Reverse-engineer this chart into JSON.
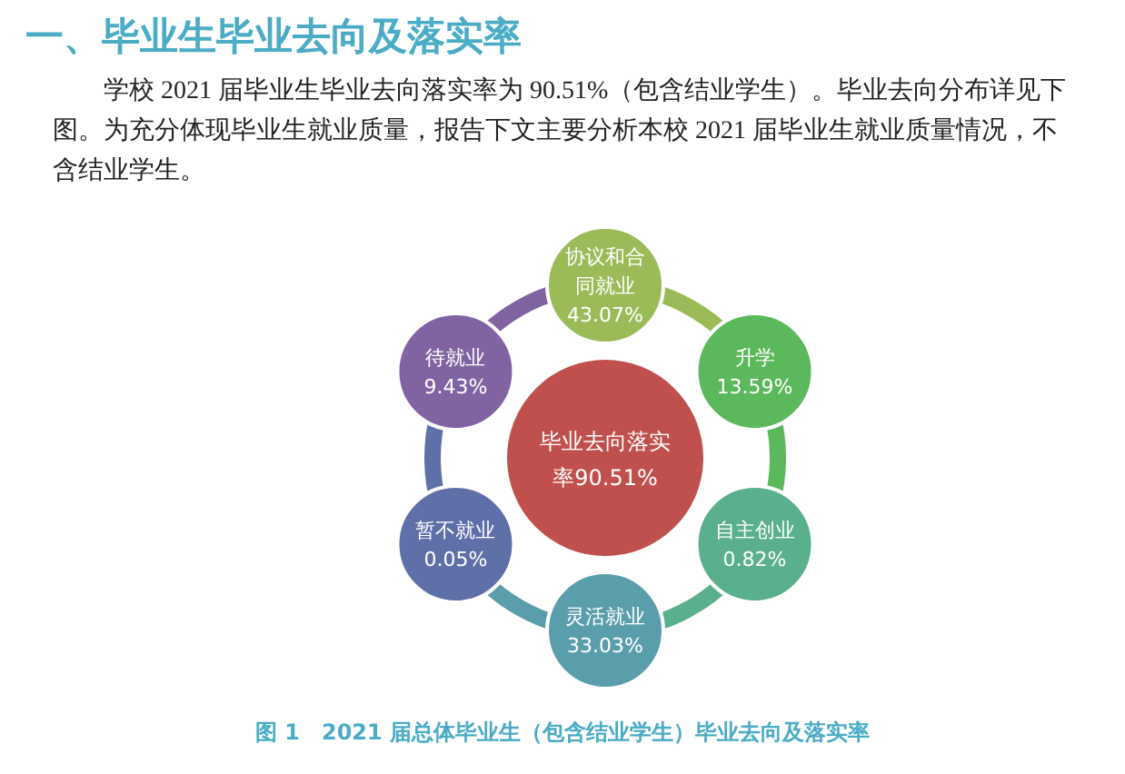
{
  "chart_data": {
    "type": "other",
    "title": "一、毕业生毕业去向及落实率",
    "subtitle": "学校 2021 届毕业生毕业去向落实率为 90.51%（包含结业学生）。毕业去向分布详见下图。为充分体现毕业生就业质量，报告下文主要分析本校 2021 届毕业生就业质量情况，不含结业学生。",
    "categories": [
      "协议和合同就业",
      "升学",
      "自主创业",
      "灵活就业",
      "暂不就业",
      "待就业"
    ],
    "values": [
      43.07,
      13.59,
      0.82,
      33.03,
      0.05,
      9.43
    ],
    "value_labels": [
      "43.07%",
      "13.59%",
      "0.82%",
      "33.03%",
      "0.05%",
      "9.43%"
    ],
    "data_labels": true,
    "colors": [
      "#9bbb59",
      "#5cb85c",
      "#5aaf8c",
      "#5b9eab",
      "#5f6fa8",
      "#8064a2"
    ],
    "annotations": [
      "毕业去向落实率90.51%",
      "图 1　2021 届总体毕业生（包含结业学生）毕业去向及落实率"
    ]
  }
}
